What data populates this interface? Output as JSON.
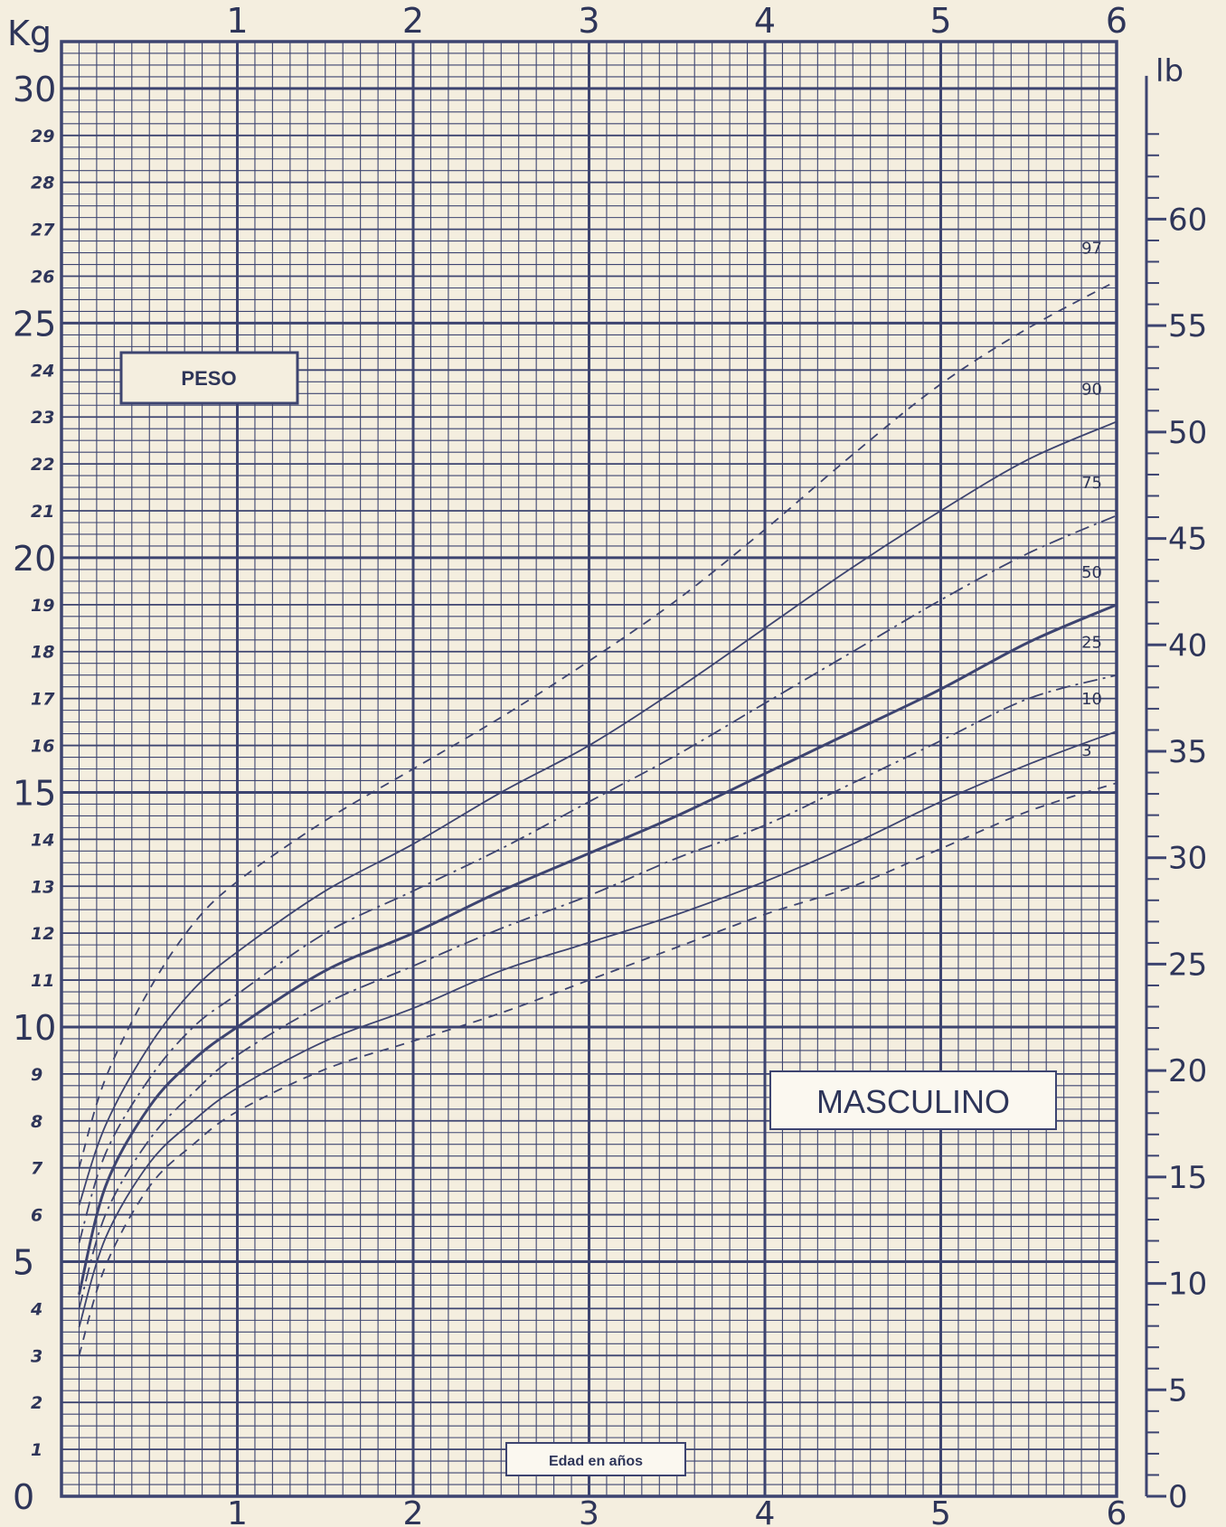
{
  "chart_data": {
    "type": "line",
    "title": "PESO",
    "subtitle": "MASCULINO",
    "xlabel": "Edad en años",
    "ylabel": "Kg",
    "y2label": "lb",
    "xlim": [
      0,
      6
    ],
    "ylim": [
      0,
      30
    ],
    "y2lim": [
      0,
      66.14
    ],
    "grid": true,
    "x_ticks_top": [
      "1",
      "2",
      "3",
      "4",
      "5",
      "6"
    ],
    "x_ticks_bottom": [
      "1",
      "2",
      "3",
      "4",
      "5",
      "6"
    ],
    "y_ticks": [
      "0",
      "1",
      "2",
      "3",
      "4",
      "5",
      "6",
      "7",
      "8",
      "9",
      "10",
      "11",
      "12",
      "13",
      "14",
      "15",
      "16",
      "17",
      "18",
      "19",
      "20",
      "21",
      "22",
      "23",
      "24",
      "25",
      "26",
      "27",
      "28",
      "29",
      "30"
    ],
    "y2_ticks": [
      "0",
      "5",
      "10",
      "15",
      "20",
      "25",
      "30",
      "35",
      "40",
      "45",
      "50",
      "55",
      "60"
    ],
    "series": [
      {
        "name": "97",
        "style": "dashed",
        "x": [
          0.1,
          0.25,
          0.5,
          0.75,
          1,
          1.5,
          2,
          2.5,
          3,
          3.5,
          4,
          4.5,
          5,
          5.5,
          6
        ],
        "y": [
          7.0,
          8.9,
          10.8,
          12.2,
          13.1,
          14.4,
          15.5,
          16.6,
          17.8,
          19.1,
          20.6,
          22.2,
          23.7,
          24.9,
          25.9
        ]
      },
      {
        "name": "90",
        "style": "solid",
        "x": [
          0.1,
          0.25,
          0.5,
          0.75,
          1,
          1.5,
          2,
          2.5,
          3,
          3.5,
          4,
          4.5,
          5,
          5.5,
          6
        ],
        "y": [
          6.2,
          7.9,
          9.6,
          10.8,
          11.6,
          12.9,
          13.9,
          15.0,
          16.0,
          17.2,
          18.5,
          19.8,
          21.0,
          22.1,
          22.9
        ]
      },
      {
        "name": "75",
        "style": "dash-dot",
        "x": [
          0.1,
          0.25,
          0.5,
          0.75,
          1,
          1.5,
          2,
          2.5,
          3,
          3.5,
          4,
          4.5,
          5,
          5.5,
          6
        ],
        "y": [
          5.4,
          7.3,
          8.9,
          10.0,
          10.7,
          12.0,
          12.9,
          13.8,
          14.8,
          15.8,
          16.9,
          18.0,
          19.1,
          20.1,
          20.9
        ]
      },
      {
        "name": "50",
        "style": "solid-bold",
        "x": [
          0.1,
          0.25,
          0.5,
          0.75,
          1,
          1.5,
          2,
          2.5,
          3,
          3.5,
          4,
          4.5,
          5,
          5.5,
          6
        ],
        "y": [
          4.3,
          6.6,
          8.3,
          9.3,
          10.0,
          11.2,
          12.0,
          12.9,
          13.7,
          14.5,
          15.4,
          16.3,
          17.2,
          18.2,
          19.0
        ]
      },
      {
        "name": "25",
        "style": "dash-dot",
        "x": [
          0.1,
          0.25,
          0.5,
          0.75,
          1,
          1.5,
          2,
          2.5,
          3,
          3.5,
          4,
          4.5,
          5,
          5.5,
          6
        ],
        "y": [
          4.0,
          6.0,
          7.6,
          8.6,
          9.4,
          10.5,
          11.3,
          12.1,
          12.8,
          13.6,
          14.3,
          15.2,
          16.1,
          17.0,
          17.5
        ]
      },
      {
        "name": "10",
        "style": "solid",
        "x": [
          0.1,
          0.25,
          0.5,
          0.75,
          1,
          1.5,
          2,
          2.5,
          3,
          3.5,
          4,
          4.5,
          5,
          5.5,
          6
        ],
        "y": [
          3.6,
          5.5,
          7.1,
          8.0,
          8.7,
          9.7,
          10.4,
          11.2,
          11.8,
          12.4,
          13.1,
          13.9,
          14.8,
          15.6,
          16.3
        ]
      },
      {
        "name": "3",
        "style": "dashed",
        "x": [
          0.1,
          0.25,
          0.5,
          0.75,
          1,
          1.5,
          2,
          2.5,
          3,
          3.5,
          4,
          4.5,
          5,
          5.5,
          6
        ],
        "y": [
          3.0,
          4.9,
          6.6,
          7.5,
          8.2,
          9.1,
          9.7,
          10.3,
          11.0,
          11.7,
          12.4,
          13.0,
          13.8,
          14.6,
          15.2
        ]
      }
    ],
    "colors": {
      "grid": "#3d4470",
      "line": "#3d4470",
      "paper": "#f4eedf"
    }
  }
}
